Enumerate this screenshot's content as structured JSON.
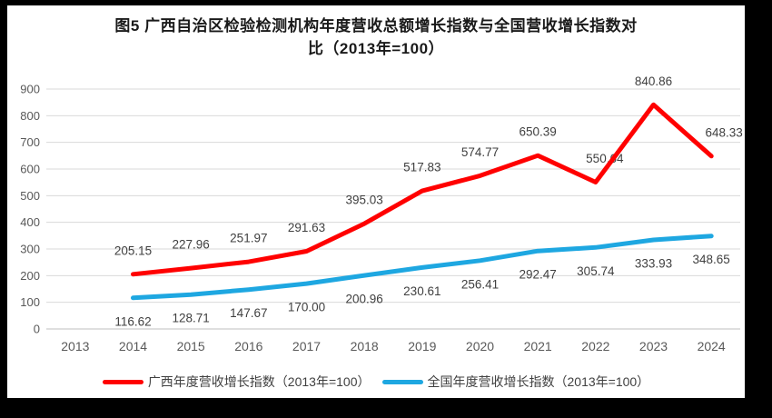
{
  "chart_data": {
    "type": "line",
    "title_lines": [
      "图5  广西自治区检验检测机构年度营收总额增长指数与全国营收增长指数对",
      "比（2013年=100）"
    ],
    "categories": [
      "2013",
      "2014",
      "2015",
      "2016",
      "2017",
      "2018",
      "2019",
      "2020",
      "2021",
      "2022",
      "2023",
      "2024"
    ],
    "series": [
      {
        "name": "广西年度营收增长指数（2013年=100）",
        "color": "#ff0000",
        "values": [
          null,
          205.15,
          227.96,
          251.97,
          291.63,
          395.03,
          517.83,
          574.77,
          650.39,
          550.64,
          840.86,
          648.33
        ],
        "labels": [
          "",
          "205.15",
          "227.96",
          "251.97",
          "291.63",
          "395.03",
          "517.83",
          "574.77",
          "650.39",
          "550.64",
          "840.86",
          "648.33"
        ],
        "label_position": "above",
        "label_dx": [
          0,
          0,
          0,
          0,
          0,
          0,
          0,
          0,
          0,
          10,
          0,
          14
        ]
      },
      {
        "name": "全国年度营收增长指数（2013年=100）",
        "color": "#1ea7e1",
        "values": [
          null,
          116.62,
          128.71,
          147.67,
          170,
          200.96,
          230.61,
          256.41,
          292.47,
          305.74,
          333.93,
          348.65
        ],
        "labels": [
          "",
          "116.62",
          "128.71",
          "147.67",
          "170.00",
          "200.96",
          "230.61",
          "256.41",
          "292.47",
          "305.74",
          "333.93",
          "348.65"
        ],
        "label_position": "below",
        "label_dx": [
          0,
          0,
          0,
          0,
          0,
          0,
          0,
          0,
          0,
          0,
          0,
          0
        ]
      }
    ],
    "y_axis": {
      "min": 0,
      "max": 900,
      "step": 100,
      "ticks": [
        "0",
        "100",
        "200",
        "300",
        "400",
        "500",
        "600",
        "700",
        "800",
        "900"
      ]
    },
    "grid": true,
    "legend_position": "bottom",
    "colors": {
      "gridline": "#d9d9d9",
      "axis_line": "#bfbfbf",
      "tick_label": "#595959",
      "data_label": "#3f3f3f",
      "title": "#1a1a1a",
      "background": "#ffffff",
      "frame": "#000000"
    }
  }
}
